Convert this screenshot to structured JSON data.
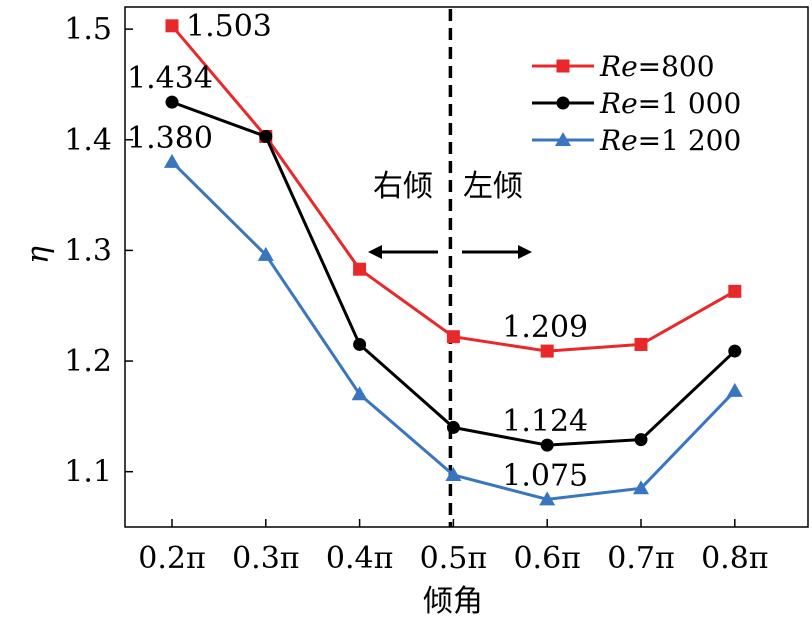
{
  "chart_data": {
    "type": "line",
    "xlabel": "倾角",
    "ylabel": "η",
    "categories": [
      "0.2π",
      "0.3π",
      "0.4π",
      "0.5π",
      "0.6π",
      "0.7π",
      "0.8π"
    ],
    "ylim": [
      1.05,
      1.52
    ],
    "yticks": [
      "1.1",
      "1.2",
      "1.3",
      "1.4",
      "1.5"
    ],
    "yticks_values": [
      1.1,
      1.2,
      1.3,
      1.4,
      1.5
    ],
    "grid": false,
    "legend_position": "top-right",
    "series": [
      {
        "name": "Re=800",
        "name_italic": "Re",
        "name_rest": "=800",
        "color": "#e8282a",
        "marker": "square",
        "values": [
          1.503,
          1.403,
          1.283,
          1.222,
          1.209,
          1.215,
          1.263
        ]
      },
      {
        "name": "Re=1 000",
        "name_italic": "Re",
        "name_rest": "=1 000",
        "color": "#000000",
        "marker": "circle",
        "values": [
          1.434,
          1.403,
          1.215,
          1.14,
          1.124,
          1.129,
          1.209
        ]
      },
      {
        "name": "Re=1 200",
        "name_italic": "Re",
        "name_rest": "=1 200",
        "color": "#3a76c0",
        "marker": "triangle",
        "values": [
          1.38,
          1.296,
          1.17,
          1.097,
          1.075,
          1.085,
          1.173
        ]
      }
    ],
    "annotations": {
      "data_labels": [
        {
          "text": "1.503",
          "series": 0,
          "index": 0,
          "anchor": "right"
        },
        {
          "text": "1.434",
          "series": 1,
          "index": 0,
          "anchor": "above"
        },
        {
          "text": "1.380",
          "series": 2,
          "index": 0,
          "anchor": "above"
        },
        {
          "text": "1.209",
          "series": 0,
          "index": 4,
          "anchor": "above"
        },
        {
          "text": "1.124",
          "series": 1,
          "index": 4,
          "anchor": "above"
        },
        {
          "text": "1.075",
          "series": 2,
          "index": 4,
          "anchor": "above"
        }
      ],
      "divider_at": "0.5π",
      "left_region_label": "右倾",
      "right_region_label": "左倾"
    }
  }
}
